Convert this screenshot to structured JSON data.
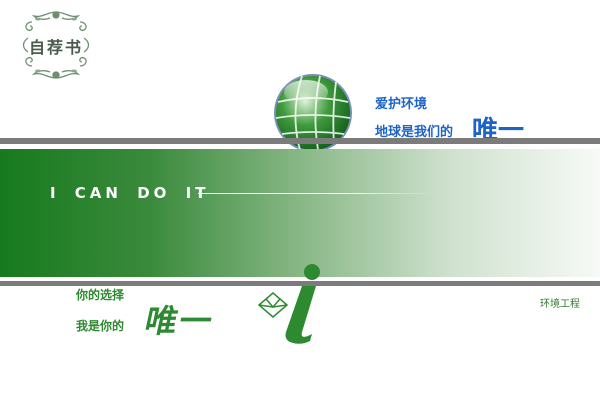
{
  "logo": {
    "text": "自荐书",
    "color": "#4a5a4c"
  },
  "slogan": {
    "line1": "爱护环境",
    "line2": "地球是我们的",
    "emphasis": "唯一",
    "color": "#1e63c8"
  },
  "banner": {
    "text": "I CAN DO IT",
    "gradient_start": "#177a1d",
    "gradient_end": "#f7faf7"
  },
  "footer": {
    "line1": "你的选择",
    "line2": "我是你的",
    "emphasis": "唯一",
    "department": "环境工程",
    "color": "#2e8a31"
  },
  "icons": [
    "ornament-icon",
    "globe-icon",
    "envelope-icon",
    "info-i-icon"
  ]
}
